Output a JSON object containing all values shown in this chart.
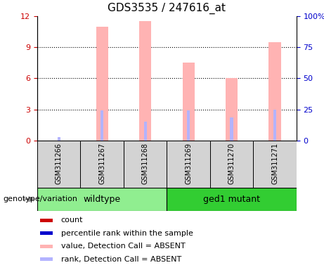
{
  "title": "GDS3535 / 247616_at",
  "categories": [
    "GSM311266",
    "GSM311267",
    "GSM311268",
    "GSM311269",
    "GSM311270",
    "GSM311271"
  ],
  "pink_bar_values": [
    0.0,
    11.0,
    11.5,
    7.5,
    6.0,
    9.5
  ],
  "blue_bar_values": [
    0.3,
    2.9,
    1.8,
    2.9,
    2.2,
    3.0
  ],
  "ylim_left": [
    0,
    12
  ],
  "ylim_right": [
    0,
    100
  ],
  "yticks_left": [
    0,
    3,
    6,
    9,
    12
  ],
  "yticks_right": [
    0,
    25,
    50,
    75,
    100
  ],
  "ytick_labels_left": [
    "0",
    "3",
    "6",
    "9",
    "12"
  ],
  "ytick_labels_right": [
    "0",
    "25",
    "50",
    "75",
    "100%"
  ],
  "left_axis_color": "#cc0000",
  "right_axis_color": "#0000cc",
  "pink_bar_color": "#ffb3b3",
  "blue_bar_color": "#b3b3ff",
  "chart_bg": "#ffffff",
  "sample_box_color": "#d3d3d3",
  "wildtype_color": "#90ee90",
  "mutant_color": "#32cd32",
  "genotype_label": "genotype/variation",
  "groups": [
    {
      "label": "wildtype",
      "start": 0,
      "end": 2,
      "color": "#90ee90"
    },
    {
      "label": "ged1 mutant",
      "start": 3,
      "end": 5,
      "color": "#32cd32"
    }
  ],
  "legend_items": [
    {
      "label": "count",
      "color": "#cc0000"
    },
    {
      "label": "percentile rank within the sample",
      "color": "#0000cc"
    },
    {
      "label": "value, Detection Call = ABSENT",
      "color": "#ffb3b3"
    },
    {
      "label": "rank, Detection Call = ABSENT",
      "color": "#b3b3ff"
    }
  ]
}
